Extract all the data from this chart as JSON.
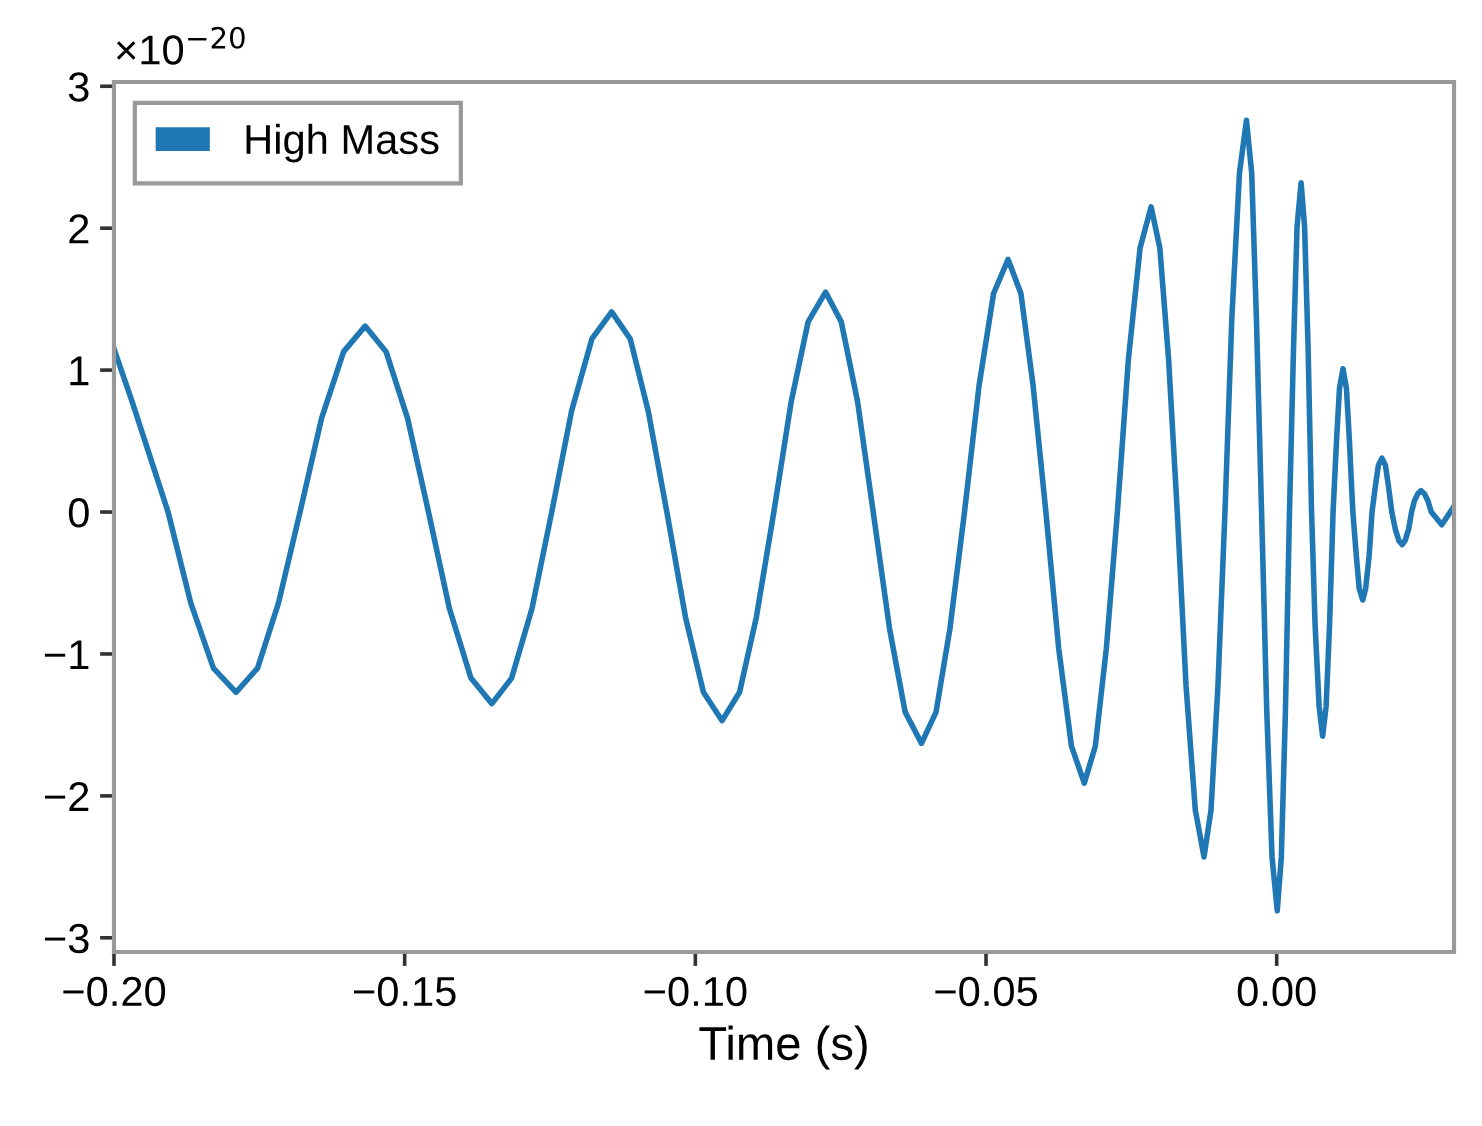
{
  "chart_data": {
    "type": "line",
    "xlabel": "Time (s)",
    "annotations": [
      "×10$^{−20}$"
    ],
    "series": [
      {
        "name": "High Mass",
        "color": "#1f77b4",
        "x": [
          -0.2,
          -0.1969,
          -0.1938,
          -0.1907,
          -0.1868,
          -0.1829,
          -0.179,
          -0.1753,
          -0.1717,
          -0.168,
          -0.1643,
          -0.1605,
          -0.1568,
          -0.1532,
          -0.1495,
          -0.1459,
          -0.1423,
          -0.1386,
          -0.135,
          -0.1316,
          -0.1281,
          -0.1247,
          -0.1213,
          -0.1178,
          -0.1144,
          -0.1112,
          -0.1081,
          -0.1049,
          -0.1017,
          -0.0986,
          -0.0954,
          -0.0924,
          -0.0895,
          -0.0865,
          -0.0835,
          -0.0806,
          -0.0776,
          -0.0749,
          -0.0721,
          -0.0694,
          -0.0666,
          -0.0639,
          -0.0611,
          -0.0586,
          -0.0562,
          -0.0537,
          -0.0512,
          -0.0487,
          -0.0462,
          -0.044,
          -0.0419,
          -0.0397,
          -0.0375,
          -0.0353,
          -0.0331,
          -0.0312,
          -0.0293,
          -0.0274,
          -0.0255,
          -0.0235,
          -0.0216,
          -0.0201,
          -0.0186,
          -0.0171,
          -0.0156,
          -0.014,
          -0.0125,
          -0.0113,
          -0.0101,
          -0.0089,
          -0.0077,
          -0.0064,
          -0.0052,
          -0.0043,
          -0.0035,
          -0.0026,
          -0.0017,
          -0.0008,
          0.0001,
          0.0008,
          0.0015,
          0.0022,
          0.0029,
          0.0035,
          0.0042,
          0.0048,
          0.0054,
          0.006,
          0.0066,
          0.0073,
          0.0079,
          0.0085,
          0.0091,
          0.0097,
          0.0103,
          0.0108,
          0.0114,
          0.012,
          0.0125,
          0.0131,
          0.0137,
          0.0142,
          0.0148,
          0.0153,
          0.0159,
          0.0164,
          0.017,
          0.0175,
          0.0181,
          0.0187,
          0.0192,
          0.0198,
          0.0204,
          0.021,
          0.0216,
          0.0221,
          0.0227,
          0.0232,
          0.0237,
          0.0243,
          0.0248,
          0.0254,
          0.026,
          0.0266,
          0.0284,
          0.0305
        ],
        "values": [
          1.15,
          0.78,
          0.39,
          0,
          -0.64,
          -1.1,
          -1.27,
          -1.1,
          -0.64,
          0,
          0.66,
          1.13,
          1.31,
          1.13,
          0.66,
          0,
          -0.68,
          -1.17,
          -1.35,
          -1.17,
          -0.68,
          0,
          0.71,
          1.22,
          1.41,
          1.22,
          0.71,
          0,
          -0.74,
          -1.27,
          -1.47,
          -1.27,
          -0.74,
          0,
          0.78,
          1.34,
          1.55,
          1.34,
          0.78,
          0,
          -0.82,
          -1.41,
          -1.63,
          -1.41,
          -0.82,
          0,
          0.89,
          1.54,
          1.78,
          1.54,
          0.89,
          0,
          -0.96,
          -1.65,
          -1.91,
          -1.65,
          -0.96,
          0,
          1.08,
          1.86,
          2.15,
          1.86,
          1.08,
          0,
          -1.22,
          -2.1,
          -2.43,
          -2.1,
          -1.22,
          0,
          1.38,
          2.39,
          2.76,
          2.39,
          1.38,
          0,
          -1.41,
          -2.43,
          -2.81,
          -2.43,
          -1.41,
          0,
          1.16,
          2.01,
          2.32,
          2.01,
          1.16,
          0,
          -0.79,
          -1.37,
          -1.58,
          -1.37,
          -0.79,
          0,
          0.51,
          0.87,
          1.01,
          0.87,
          0.51,
          0,
          -0.31,
          -0.54,
          -0.62,
          -0.54,
          -0.31,
          0,
          0.19,
          0.33,
          0.38,
          0.33,
          0.19,
          0,
          -0.12,
          -0.2,
          -0.23,
          -0.2,
          -0.12,
          0,
          0.08,
          0.13,
          0.15,
          0.13,
          0.08,
          0,
          -0.09,
          0.04
        ]
      }
    ],
    "xlim": [
      -0.2,
      0.0305
    ],
    "ylim": [
      -3.1,
      3.03
    ],
    "xticks": [
      {
        "value": -0.2,
        "label": "−0.20"
      },
      {
        "value": -0.15,
        "label": "−0.15"
      },
      {
        "value": -0.1,
        "label": "−0.10"
      },
      {
        "value": -0.05,
        "label": "−0.05"
      },
      {
        "value": 0.0,
        "label": "0.00"
      }
    ],
    "yticks": [
      {
        "value": -3,
        "label": "−3"
      },
      {
        "value": -2,
        "label": "−2"
      },
      {
        "value": -1,
        "label": "−1"
      },
      0,
      1,
      2,
      3
    ],
    "grid": false,
    "legend": "top left",
    "marker": "none",
    "line_style": "solid"
  }
}
